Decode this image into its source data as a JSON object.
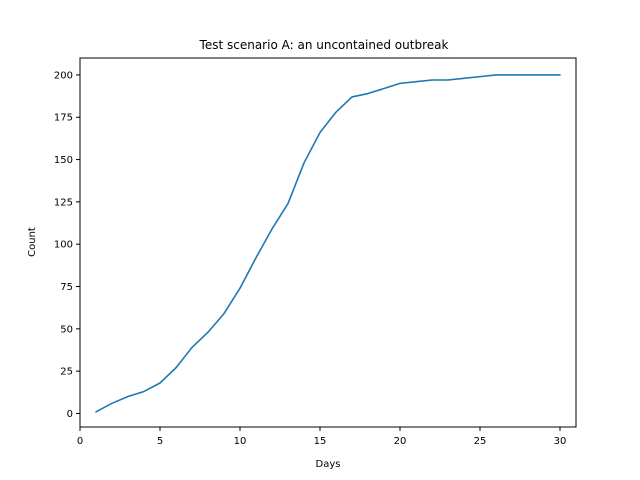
{
  "chart_data": {
    "type": "line",
    "title": "Test scenario A: an uncontained outbreak",
    "xlabel": "Days",
    "ylabel": "Count",
    "xlim": [
      0,
      31
    ],
    "ylim": [
      -8,
      210
    ],
    "x_ticks": [
      0,
      5,
      10,
      15,
      20,
      25,
      30
    ],
    "y_ticks": [
      0,
      25,
      50,
      75,
      100,
      125,
      150,
      175,
      200
    ],
    "grid": false,
    "legend": "none",
    "series": [
      {
        "color": "#1f77b4",
        "x": [
          1,
          2,
          3,
          4,
          5,
          6,
          7,
          8,
          9,
          10,
          11,
          12,
          13,
          14,
          15,
          16,
          17,
          18,
          19,
          20,
          21,
          22,
          23,
          24,
          25,
          26,
          27,
          28,
          29,
          30
        ],
        "y": [
          1,
          6,
          10,
          13,
          18,
          27,
          39,
          48,
          59,
          74,
          92,
          109,
          124,
          148,
          166,
          178,
          187,
          189,
          192,
          195,
          196,
          197,
          197,
          198,
          199,
          200,
          200,
          200,
          200,
          200
        ]
      }
    ]
  }
}
